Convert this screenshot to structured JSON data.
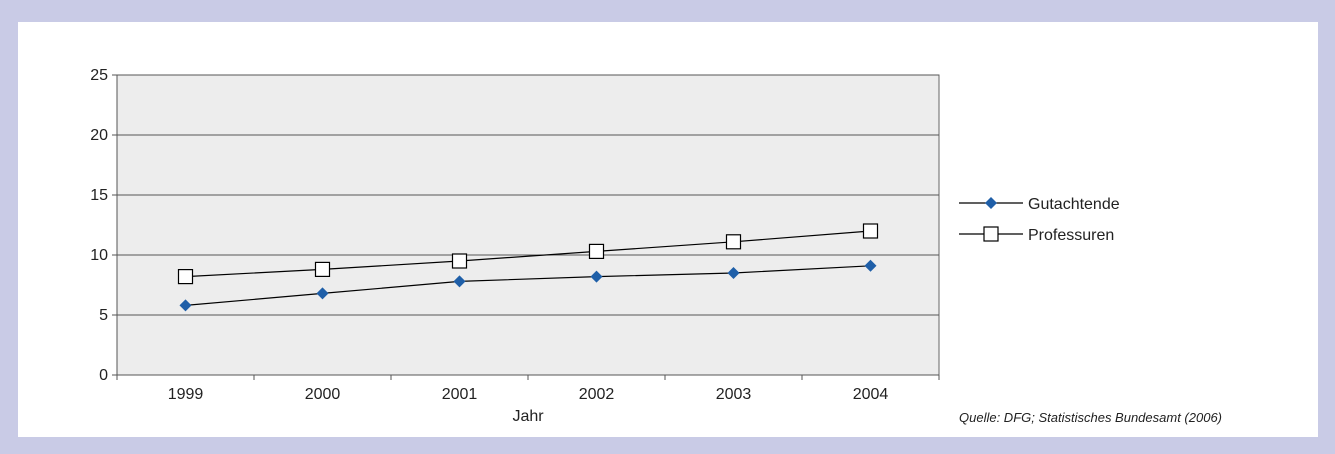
{
  "chart_data": {
    "type": "line",
    "categories": [
      "1999",
      "2000",
      "2001",
      "2002",
      "2003",
      "2004"
    ],
    "series": [
      {
        "name": "Gutachtende",
        "values": [
          5.8,
          6.8,
          7.8,
          8.2,
          8.5,
          9.1
        ],
        "color": "#1f5fa8",
        "marker": "diamond"
      },
      {
        "name": "Professuren",
        "values": [
          8.2,
          8.8,
          9.5,
          10.3,
          11.1,
          12.0
        ],
        "color": "#000000",
        "marker": "square-open"
      }
    ],
    "xlabel": "Jahr",
    "ylabel": "",
    "ylim": [
      0,
      25
    ],
    "yticks": [
      0,
      5,
      10,
      15,
      20,
      25
    ],
    "grid": true,
    "legend": "right",
    "plot_background": "#ededed"
  },
  "source": "Quelle: DFG; Statistisches Bundesamt (2006)"
}
